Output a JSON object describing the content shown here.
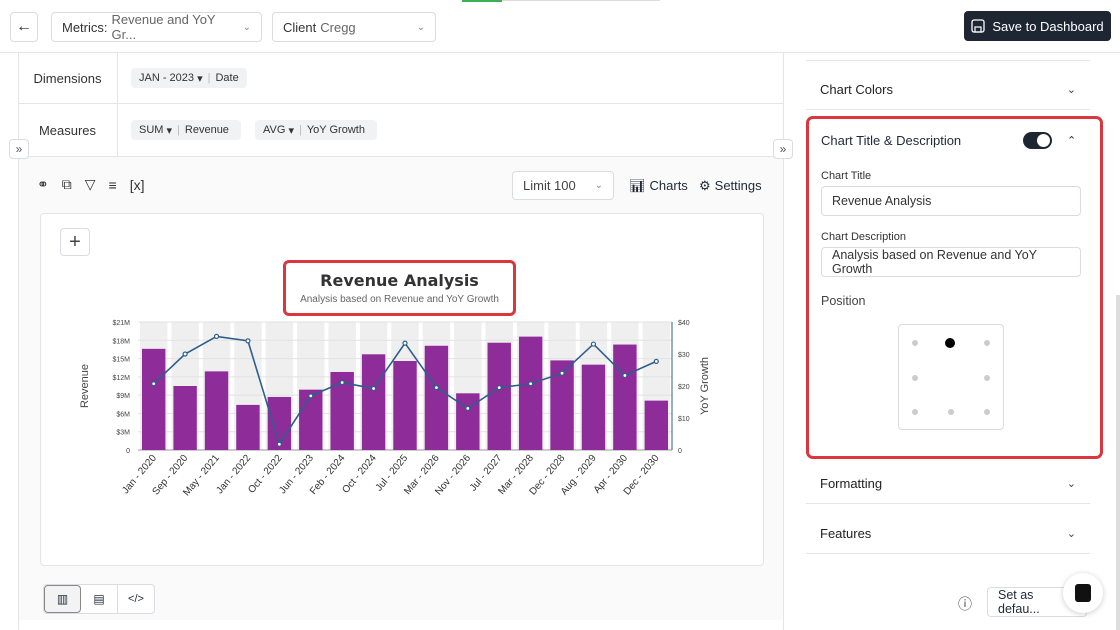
{
  "header": {
    "back_icon": "arrow-left-icon",
    "metrics_label": "Metrics:",
    "metrics_value": "Revenue and YoY Gr...",
    "client_label": "Client",
    "client_value": "Cregg",
    "save_label": "Save to Dashboard"
  },
  "query": {
    "dimensions_label": "Dimensions",
    "dimension_pill": {
      "agg": "JAN - 2023",
      "field": "Date"
    },
    "measures_label": "Measures",
    "measure_pills": [
      {
        "agg": "SUM",
        "field": "Revenue"
      },
      {
        "agg": "AVG",
        "field": "YoY Growth"
      }
    ]
  },
  "toolbar": {
    "limit": "Limit 100",
    "charts": "Charts",
    "settings": "Settings",
    "variable_label": "[x]"
  },
  "chart_data": {
    "type": "bar+line",
    "title": "Revenue Analysis",
    "subtitle": "Analysis based on Revenue and YoY Growth",
    "ylabel": "Revenue",
    "y2label": "YoY Growth",
    "categories": [
      "Jan - 2020",
      "Sep - 2020",
      "May - 2021",
      "Jan - 2022",
      "Oct - 2022",
      "Jun - 2023",
      "Feb - 2024",
      "Oct - 2024",
      "Jul - 2025",
      "Mar - 2026",
      "Nov - 2026",
      "Jul - 2027",
      "Mar - 2028",
      "Dec - 2028",
      "Aug - 2029",
      "Apr - 2030",
      "Dec - 2030"
    ],
    "ylim": [
      0,
      21
    ],
    "y2lim": [
      0,
      40
    ],
    "yticks": [
      "0",
      "$3M",
      "$6M",
      "$9M",
      "$12M",
      "$15M",
      "$18M",
      "$21M"
    ],
    "y2ticks": [
      "0",
      "$10",
      "$20",
      "$30",
      "$40"
    ],
    "series": [
      {
        "name": "Revenue",
        "type": "bar",
        "unit": "M",
        "color": "#8e2c9a",
        "values": [
          16.6,
          10.5,
          12.9,
          7.4,
          8.7,
          9.9,
          12.8,
          15.7,
          14.6,
          17.1,
          9.3,
          17.6,
          18.6,
          14.7,
          14.0,
          17.3,
          8.1
        ]
      },
      {
        "name": "YoY Growth",
        "type": "line",
        "color": "#2e5f8a",
        "values": [
          20.7,
          30,
          35.5,
          34.1,
          1.8,
          16.9,
          21.1,
          19.2,
          33.4,
          19.5,
          13,
          19.5,
          20.7,
          24,
          33.1,
          23.3,
          27.7
        ]
      }
    ],
    "grid": true,
    "legend": "none"
  },
  "panel": {
    "chart_colors": "Chart Colors",
    "title_desc": "Chart Title & Description",
    "toggle_on": true,
    "chart_title_label": "Chart Title",
    "chart_title_value": "Revenue Analysis",
    "chart_desc_label": "Chart Description",
    "chart_desc_value": "Analysis based on Revenue and YoY Growth",
    "position_label": "Position",
    "position_selected": "top-center",
    "formatting": "Formatting",
    "features": "Features",
    "set_default": "Set as defau..."
  },
  "highlight_color": "#d9363e"
}
